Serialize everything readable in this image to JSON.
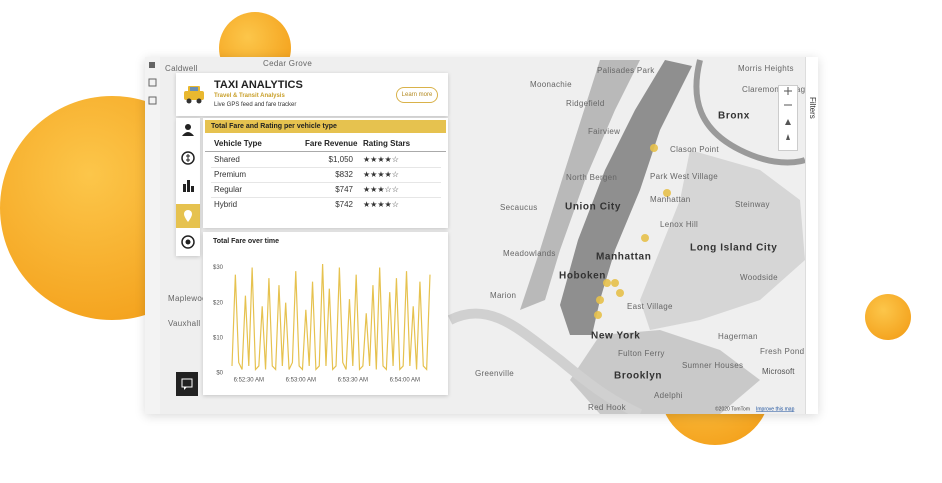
{
  "app": {
    "title": "TAXI ANALYTICS",
    "subtitle": "Travel & Transit Analysis",
    "description": "Live GPS feed and fare tracker",
    "button": "Learn more"
  },
  "table": {
    "title": "Total Fare and Rating per vehicle type",
    "columns": [
      "Vehicle Type",
      "Fare Revenue",
      "Rating Stars"
    ],
    "rows": [
      [
        "Shared",
        "$1,050",
        "★★★★☆"
      ],
      [
        "Premium",
        "$832",
        "★★★★☆"
      ],
      [
        "Regular",
        "$747",
        "★★★☆☆"
      ],
      [
        "Hybrid",
        "$742",
        "★★★★☆"
      ]
    ]
  },
  "chart_data": {
    "type": "line",
    "title": "Total Fare over time",
    "series": [
      {
        "color": "#e6c24f",
        "values": [
          2,
          28,
          3,
          1,
          22,
          2,
          30,
          1,
          2,
          19,
          1,
          27,
          2,
          1,
          25,
          2,
          20,
          1,
          3,
          29,
          2,
          1,
          18,
          2,
          26,
          1,
          2,
          31,
          2,
          24,
          1,
          2,
          30,
          3,
          1,
          21,
          2,
          28,
          1,
          2,
          17,
          2,
          25,
          1,
          30,
          2,
          1,
          23,
          2,
          27,
          1,
          2,
          29,
          2,
          19,
          1,
          26,
          2,
          1,
          28
        ]
      }
    ],
    "xlim": [
      0,
      59
    ],
    "xticks": [
      {
        "value": 5,
        "label": "6:52:30 AM"
      },
      {
        "value": 20.5,
        "label": "6:53:00 AM"
      },
      {
        "value": 36,
        "label": "6:53:30 AM"
      },
      {
        "value": 51.5,
        "label": "6:54:00 AM"
      }
    ],
    "ylim": [
      0,
      35
    ],
    "yticks": [
      {
        "value": 0,
        "label": "$0"
      },
      {
        "value": 10,
        "label": "$10"
      },
      {
        "value": 20,
        "label": "$20"
      },
      {
        "value": 30,
        "label": "$30"
      }
    ]
  },
  "map": {
    "labels": [
      "Cedar Grove",
      "Caldwell",
      "Palisades Park",
      "Moonachie",
      "Morris Heights",
      "Claremont Village",
      "Ridgefield",
      "Bronx",
      "Fairview",
      "Clason Point",
      "North Bergen",
      "Park West Village",
      "Manhattan",
      "Steinway",
      "Secaucus",
      "Union City",
      "Lenox Hill",
      "Long Island City",
      "Meadowlands",
      "Manhattan",
      "Hoboken",
      "Woodside",
      "Marion",
      "East Village",
      "Maplewood",
      "Vauxhall",
      "New York",
      "Hagerman",
      "Fulton Ferry",
      "Fresh Pond",
      "Sumner Houses",
      "Greenville",
      "Brooklyn",
      "Adelphi",
      "Red Hook"
    ],
    "brand": "Microsoft",
    "attribution": "©2020 TomTom",
    "link": "Improve this map"
  },
  "filters": "Filters"
}
